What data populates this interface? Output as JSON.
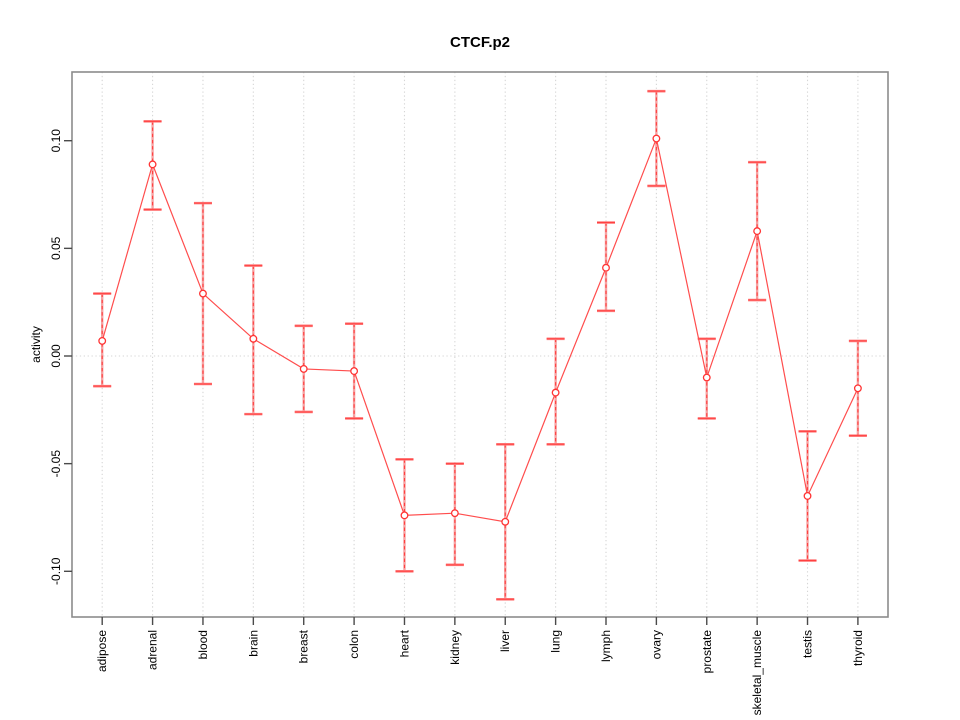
{
  "chart_data": {
    "type": "line",
    "title": "CTCF.p2",
    "xlabel": "",
    "ylabel": "activity",
    "legend": "none",
    "categories": [
      "adipose",
      "adrenal",
      "blood",
      "brain",
      "breast",
      "colon",
      "heart",
      "kidney",
      "liver",
      "lung",
      "lymph",
      "ovary",
      "prostate",
      "skeletal_muscle",
      "testis",
      "thyroid"
    ],
    "series": [
      {
        "name": "CTCF.p2 activity",
        "values": [
          0.007,
          0.089,
          0.029,
          0.008,
          -0.006,
          -0.007,
          -0.074,
          -0.073,
          -0.077,
          -0.017,
          0.041,
          0.101,
          -0.01,
          0.058,
          -0.065,
          -0.015
        ],
        "upper": [
          0.029,
          0.109,
          0.071,
          0.042,
          0.014,
          0.015,
          -0.048,
          -0.05,
          -0.041,
          0.008,
          0.062,
          0.123,
          0.008,
          0.09,
          -0.035,
          0.007
        ],
        "lower": [
          -0.014,
          0.068,
          -0.013,
          -0.027,
          -0.026,
          -0.029,
          -0.1,
          -0.097,
          -0.113,
          -0.041,
          0.021,
          0.079,
          -0.029,
          0.026,
          -0.095,
          -0.037
        ]
      }
    ],
    "ytick_labels": [
      "-0.10",
      "-0.05",
      "0.00",
      "0.05",
      "0.10"
    ],
    "ytick_values": [
      -0.1,
      -0.05,
      0.0,
      0.05,
      0.1
    ],
    "ylim": [
      -0.121,
      0.132
    ],
    "grid": "dotted vertical line at each category; dotted horizontal line at y=0",
    "marker": "open-circle",
    "colors": {
      "line": "#ff4d4d",
      "point": "#ff3333",
      "error_bar_fill": "#f5a3a3",
      "error_bar_dash": "#ff4040",
      "error_cap": "#ff8080",
      "grid": "#d6d6d6",
      "box": "#8c8c8c",
      "tick": "#4a4a4a",
      "text": "#000000",
      "background": "#ffffff"
    }
  }
}
